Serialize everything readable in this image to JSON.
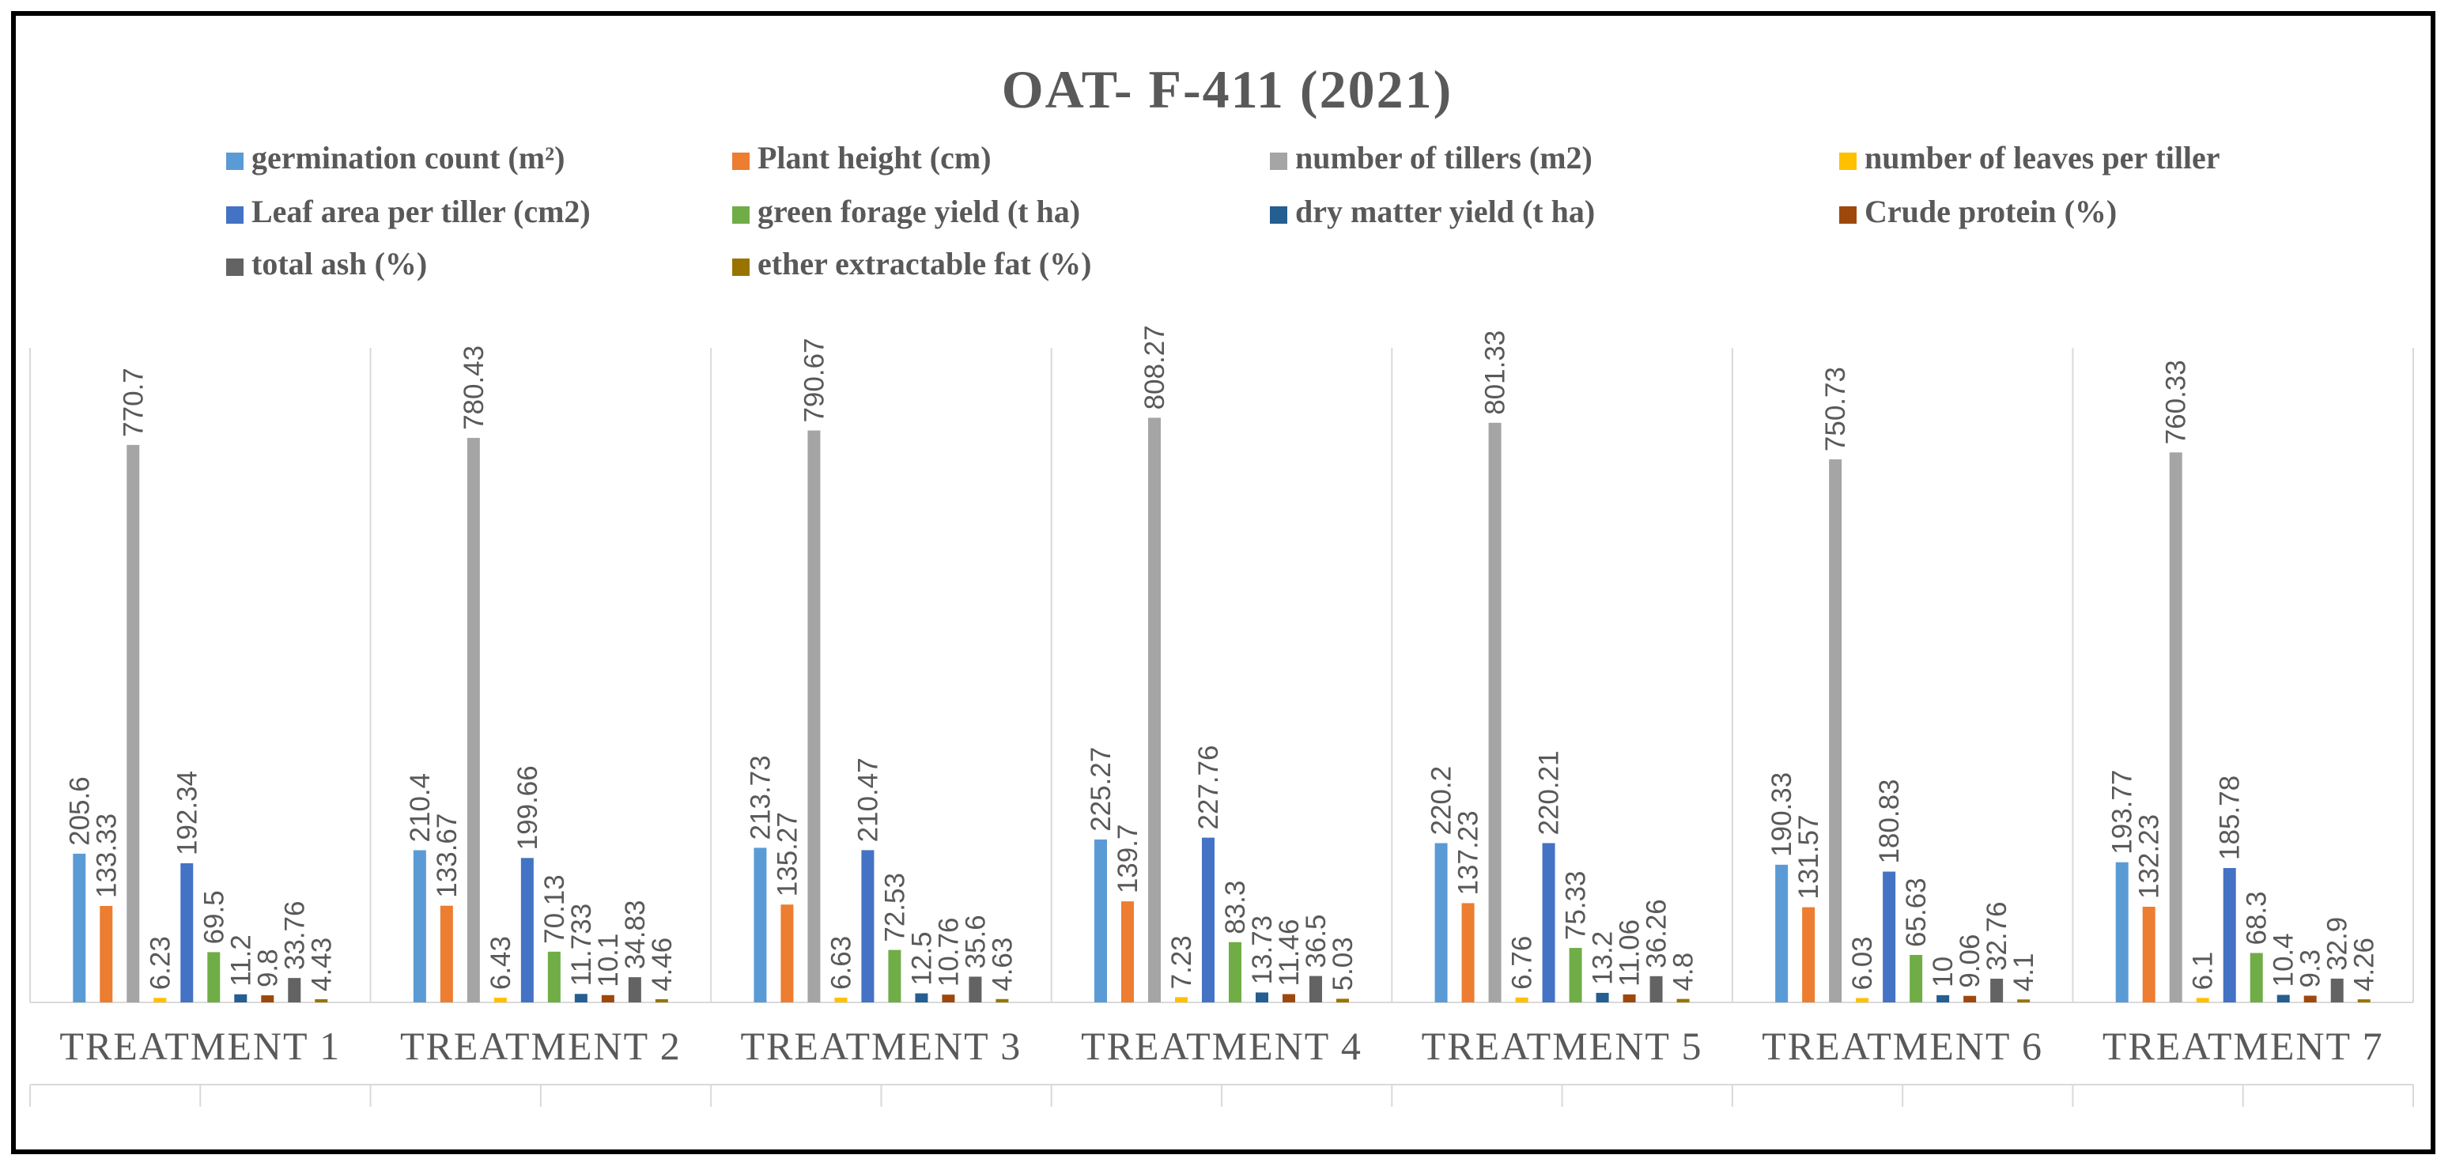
{
  "chart_data": {
    "type": "bar",
    "title": "OAT- F-411 (2021)",
    "xlabel": "",
    "ylabel": "",
    "ylim": [
      0,
      900
    ],
    "grid": false,
    "legend_position": "top",
    "categories": [
      "TREATMENT 1",
      "TREATMENT 2",
      "TREATMENT 3",
      "TREATMENT 4",
      "TREATMENT 5",
      "TREATMENT 6",
      "TREATMENT 7"
    ],
    "series": [
      {
        "name": "germination count (m²)",
        "color": "#5B9BD5",
        "values": [
          205.6,
          210.4,
          213.73,
          225.27,
          220.2,
          190.33,
          193.77
        ]
      },
      {
        "name": "Plant height (cm)",
        "color": "#ED7D31",
        "values": [
          133.33,
          133.67,
          135.27,
          139.7,
          137.23,
          131.57,
          132.23
        ]
      },
      {
        "name": "number of tillers (m2)",
        "color": "#A5A5A5",
        "values": [
          770.7,
          780.43,
          790.67,
          808.27,
          801.33,
          750.73,
          760.33
        ]
      },
      {
        "name": "number of leaves per tiller",
        "color": "#FFC000",
        "values": [
          6.23,
          6.43,
          6.63,
          7.23,
          6.76,
          6.03,
          6.1
        ]
      },
      {
        "name": "Leaf area per tiller (cm2)",
        "color": "#4472C4",
        "values": [
          192.34,
          199.66,
          210.47,
          227.76,
          220.21,
          180.83,
          185.78
        ]
      },
      {
        "name": "green forage yield (t ha)",
        "color": "#70AD47",
        "values": [
          69.5,
          70.13,
          72.53,
          83.3,
          75.33,
          65.63,
          68.3
        ]
      },
      {
        "name": "dry matter yield (t ha)",
        "color": "#255E91",
        "values": [
          11.2,
          11.733,
          12.5,
          13.73,
          13.2,
          10,
          10.4
        ]
      },
      {
        "name": "Crude protein (%)",
        "color": "#9E480E",
        "values": [
          9.8,
          10.1,
          10.76,
          11.46,
          11.06,
          9.06,
          9.3
        ]
      },
      {
        "name": "total ash (%)",
        "color": "#636363",
        "values": [
          33.76,
          34.83,
          35.6,
          36.5,
          36.26,
          32.76,
          32.9
        ]
      },
      {
        "name": "ether extractable fat (%)",
        "color": "#997300",
        "values": [
          4.43,
          4.46,
          4.63,
          5.03,
          4.8,
          4.1,
          4.26
        ]
      }
    ]
  }
}
